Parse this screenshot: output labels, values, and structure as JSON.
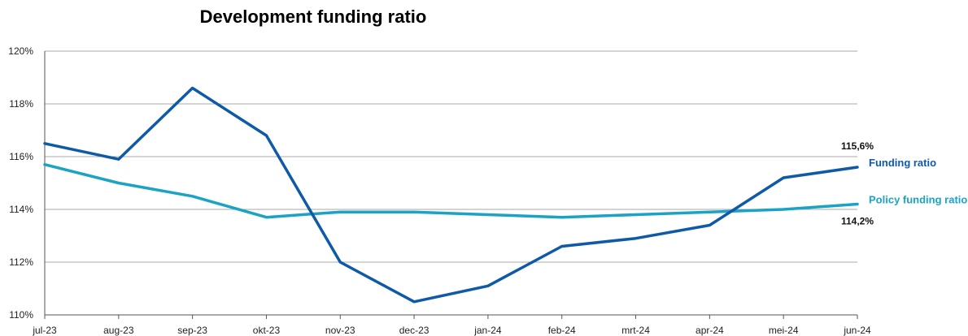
{
  "chart_data": {
    "type": "line",
    "title": "Development funding ratio",
    "xlabel": "",
    "ylabel": "",
    "categories": [
      "jul-23",
      "aug-23",
      "sep-23",
      "okt-23",
      "nov-23",
      "dec-23",
      "jan-24",
      "feb-24",
      "mrt-24",
      "apr-24",
      "mei-24",
      "jun-24"
    ],
    "ylim": [
      110,
      120
    ],
    "yticks": [
      "110%",
      "112%",
      "114%",
      "116%",
      "118%",
      "120%"
    ],
    "grid": true,
    "legend": "right",
    "series": [
      {
        "name": "Funding ratio",
        "color": "#0e5aa7",
        "values": [
          116.5,
          115.9,
          118.6,
          116.8,
          112.0,
          110.5,
          111.1,
          112.6,
          112.9,
          113.4,
          115.2,
          115.6
        ],
        "end_label": "115,6%"
      },
      {
        "name": "Policy funding ratio",
        "color": "#1ba3c6",
        "values": [
          115.7,
          115.0,
          114.5,
          113.7,
          113.9,
          113.9,
          113.8,
          113.7,
          113.8,
          113.9,
          114.0,
          114.2
        ],
        "end_label": "114,2%"
      }
    ]
  }
}
